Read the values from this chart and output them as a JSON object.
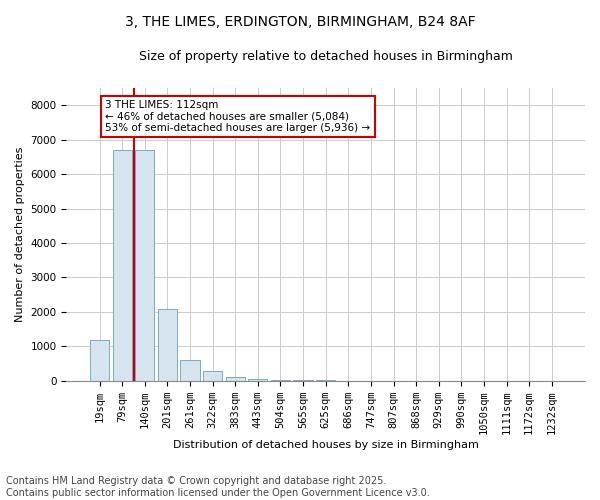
{
  "title1": "3, THE LIMES, ERDINGTON, BIRMINGHAM, B24 8AF",
  "title2": "Size of property relative to detached houses in Birmingham",
  "xlabel": "Distribution of detached houses by size in Birmingham",
  "ylabel": "Number of detached properties",
  "categories": [
    "19sqm",
    "79sqm",
    "140sqm",
    "201sqm",
    "261sqm",
    "322sqm",
    "383sqm",
    "443sqm",
    "504sqm",
    "565sqm",
    "625sqm",
    "686sqm",
    "747sqm",
    "807sqm",
    "868sqm",
    "929sqm",
    "990sqm",
    "1050sqm",
    "1111sqm",
    "1172sqm",
    "1232sqm"
  ],
  "values": [
    1200,
    6700,
    6700,
    2100,
    600,
    300,
    120,
    55,
    30,
    20,
    15,
    5,
    2,
    1,
    0,
    0,
    0,
    0,
    0,
    0,
    0
  ],
  "bar_color": "#d6e4f0",
  "bar_edge_color": "#7aaac8",
  "vline_x": 1.5,
  "vline_color": "#cc0000",
  "annotation_text": "3 THE LIMES: 112sqm\n← 46% of detached houses are smaller (5,084)\n53% of semi-detached houses are larger (5,936) →",
  "annotation_box_facecolor": "#ffffff",
  "annotation_box_edgecolor": "#cc0000",
  "ylim": [
    0,
    8500
  ],
  "yticks": [
    0,
    1000,
    2000,
    3000,
    4000,
    5000,
    6000,
    7000,
    8000
  ],
  "footer": "Contains HM Land Registry data © Crown copyright and database right 2025.\nContains public sector information licensed under the Open Government Licence v3.0.",
  "bg_color": "#ffffff",
  "grid_color": "#cccccc",
  "title_fontsize": 10,
  "subtitle_fontsize": 9,
  "axis_fontsize": 8,
  "tick_fontsize": 7.5,
  "footer_fontsize": 7
}
